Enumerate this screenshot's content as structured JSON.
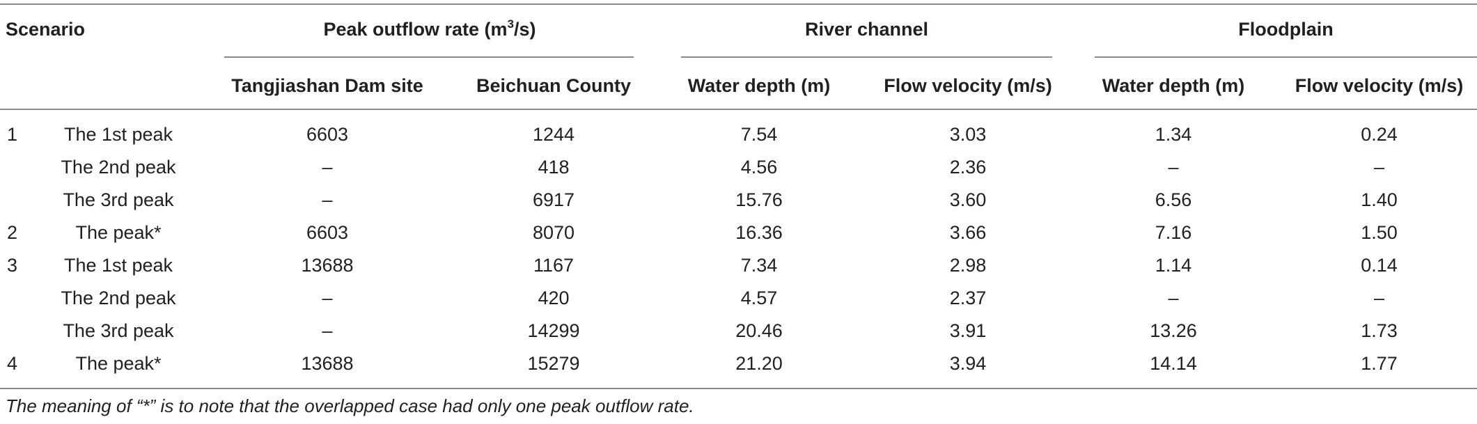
{
  "header": {
    "scenario": "Scenario",
    "peak_outflow": "Peak outflow rate (m",
    "peak_outflow_sup": "3",
    "peak_outflow_tail": "/s)",
    "river_channel": "River channel",
    "floodplain": "Floodplain",
    "sub": {
      "dam_site": "Tangjiashan Dam site",
      "beichuan": "Beichuan County",
      "rc_depth": "Water depth (m)",
      "rc_velocity": "Flow velocity (m/s)",
      "fp_depth": "Water depth (m)",
      "fp_velocity": "Flow velocity (m/s)"
    }
  },
  "rows": [
    {
      "scenario": "1",
      "peak": "The 1st peak",
      "dam": "6603",
      "beichuan": "1244",
      "rc_depth": "7.54",
      "rc_velocity": "3.03",
      "fp_depth": "1.34",
      "fp_velocity": "0.24"
    },
    {
      "scenario": "",
      "peak": "The 2nd peak",
      "dam": "–",
      "beichuan": "418",
      "rc_depth": "4.56",
      "rc_velocity": "2.36",
      "fp_depth": "–",
      "fp_velocity": "–"
    },
    {
      "scenario": "",
      "peak": "The 3rd peak",
      "dam": "–",
      "beichuan": "6917",
      "rc_depth": "15.76",
      "rc_velocity": "3.60",
      "fp_depth": "6.56",
      "fp_velocity": "1.40"
    },
    {
      "scenario": "2",
      "peak": "The peak*",
      "dam": "6603",
      "beichuan": "8070",
      "rc_depth": "16.36",
      "rc_velocity": "3.66",
      "fp_depth": "7.16",
      "fp_velocity": "1.50"
    },
    {
      "scenario": "3",
      "peak": "The 1st peak",
      "dam": "13688",
      "beichuan": "1167",
      "rc_depth": "7.34",
      "rc_velocity": "2.98",
      "fp_depth": "1.14",
      "fp_velocity": "0.14"
    },
    {
      "scenario": "",
      "peak": "The 2nd peak",
      "dam": "–",
      "beichuan": "420",
      "rc_depth": "4.57",
      "rc_velocity": "2.37",
      "fp_depth": "–",
      "fp_velocity": "–"
    },
    {
      "scenario": "",
      "peak": "The 3rd peak",
      "dam": "–",
      "beichuan": "14299",
      "rc_depth": "20.46",
      "rc_velocity": "3.91",
      "fp_depth": "13.26",
      "fp_velocity": "1.73"
    },
    {
      "scenario": "4",
      "peak": "The peak*",
      "dam": "13688",
      "beichuan": "15279",
      "rc_depth": "21.20",
      "rc_velocity": "3.94",
      "fp_depth": "14.14",
      "fp_velocity": "1.77"
    }
  ],
  "footnote": "The meaning of “*” is to note that the overlapped case had only one peak outflow rate."
}
